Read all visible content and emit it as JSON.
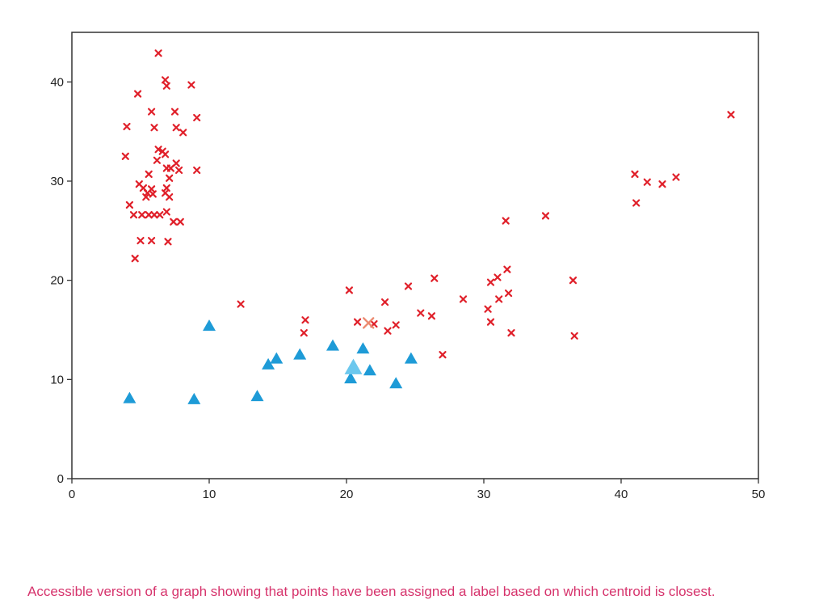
{
  "caption": "Accessible version of a graph showing that points have been assigned a label based on which centroid is closest.",
  "chart_data": {
    "type": "scatter",
    "title": "",
    "xlabel": "",
    "ylabel": "",
    "xlim": [
      0,
      50
    ],
    "ylim": [
      0,
      45
    ],
    "x_ticks": [
      0,
      10,
      20,
      30,
      40,
      50
    ],
    "y_ticks": [
      0,
      10,
      20,
      30,
      40
    ],
    "grid": false,
    "colors": {
      "cross": "#e0202a",
      "triangle": "#1e9bd7",
      "cross_centroid": "#ec8a70",
      "triangle_centroid": "#6cc8ee",
      "frame": "#333333"
    },
    "series": [
      {
        "marker": "x",
        "points": [
          [
            6.3,
            42.9
          ],
          [
            6.8,
            40.2
          ],
          [
            6.9,
            39.6
          ],
          [
            8.7,
            39.7
          ],
          [
            4.8,
            38.8
          ],
          [
            5.8,
            37.0
          ],
          [
            7.5,
            37.0
          ],
          [
            9.1,
            36.4
          ],
          [
            4.0,
            35.5
          ],
          [
            6.0,
            35.4
          ],
          [
            7.6,
            35.4
          ],
          [
            8.1,
            34.9
          ],
          [
            6.3,
            33.2
          ],
          [
            6.6,
            33.0
          ],
          [
            6.8,
            32.7
          ],
          [
            3.9,
            32.5
          ],
          [
            6.2,
            32.1
          ],
          [
            7.6,
            31.8
          ],
          [
            7.2,
            31.3
          ],
          [
            6.9,
            31.3
          ],
          [
            7.8,
            31.1
          ],
          [
            9.1,
            31.1
          ],
          [
            5.6,
            30.7
          ],
          [
            7.1,
            30.3
          ],
          [
            4.9,
            29.7
          ],
          [
            5.2,
            29.3
          ],
          [
            6.9,
            29.3
          ],
          [
            5.8,
            29.2
          ],
          [
            5.5,
            28.8
          ],
          [
            6.8,
            28.8
          ],
          [
            5.9,
            28.7
          ],
          [
            5.4,
            28.4
          ],
          [
            7.1,
            28.4
          ],
          [
            4.2,
            27.6
          ],
          [
            6.9,
            26.9
          ],
          [
            4.5,
            26.6
          ],
          [
            5.1,
            26.6
          ],
          [
            5.6,
            26.6
          ],
          [
            6.0,
            26.6
          ],
          [
            6.4,
            26.6
          ],
          [
            7.4,
            25.9
          ],
          [
            7.9,
            25.9
          ],
          [
            5.0,
            24.0
          ],
          [
            5.8,
            24.0
          ],
          [
            7.0,
            23.9
          ],
          [
            4.6,
            22.2
          ],
          [
            48.0,
            36.7
          ],
          [
            41.0,
            30.7
          ],
          [
            41.9,
            29.9
          ],
          [
            43.0,
            29.7
          ],
          [
            44.0,
            30.4
          ],
          [
            41.1,
            27.8
          ],
          [
            34.5,
            26.5
          ],
          [
            31.6,
            26.0
          ],
          [
            31.7,
            21.1
          ],
          [
            31.0,
            20.3
          ],
          [
            30.5,
            19.8
          ],
          [
            36.5,
            20.0
          ],
          [
            26.4,
            20.2
          ],
          [
            24.5,
            19.4
          ],
          [
            20.2,
            19.0
          ],
          [
            31.8,
            18.7
          ],
          [
            28.5,
            18.1
          ],
          [
            31.1,
            18.1
          ],
          [
            22.8,
            17.8
          ],
          [
            12.3,
            17.6
          ],
          [
            25.4,
            16.7
          ],
          [
            26.2,
            16.4
          ],
          [
            30.3,
            17.1
          ],
          [
            30.5,
            15.8
          ],
          [
            17.0,
            16.0
          ],
          [
            20.8,
            15.8
          ],
          [
            23.6,
            15.5
          ],
          [
            22.0,
            15.6
          ],
          [
            23.0,
            14.9
          ],
          [
            16.9,
            14.7
          ],
          [
            32.0,
            14.7
          ],
          [
            36.6,
            14.4
          ],
          [
            27.0,
            12.5
          ]
        ]
      },
      {
        "marker": "triangle",
        "points": [
          [
            10.0,
            15.4
          ],
          [
            19.0,
            13.4
          ],
          [
            21.2,
            13.1
          ],
          [
            16.6,
            12.5
          ],
          [
            14.9,
            12.1
          ],
          [
            24.7,
            12.1
          ],
          [
            14.3,
            11.5
          ],
          [
            21.7,
            10.9
          ],
          [
            20.3,
            10.1
          ],
          [
            23.6,
            9.6
          ],
          [
            13.5,
            8.3
          ],
          [
            4.2,
            8.1
          ],
          [
            8.9,
            8.0
          ]
        ]
      }
    ],
    "centroids": [
      {
        "marker": "x",
        "point": [
          21.6,
          15.7
        ]
      },
      {
        "marker": "triangle",
        "point": [
          20.5,
          11.2
        ]
      }
    ]
  }
}
